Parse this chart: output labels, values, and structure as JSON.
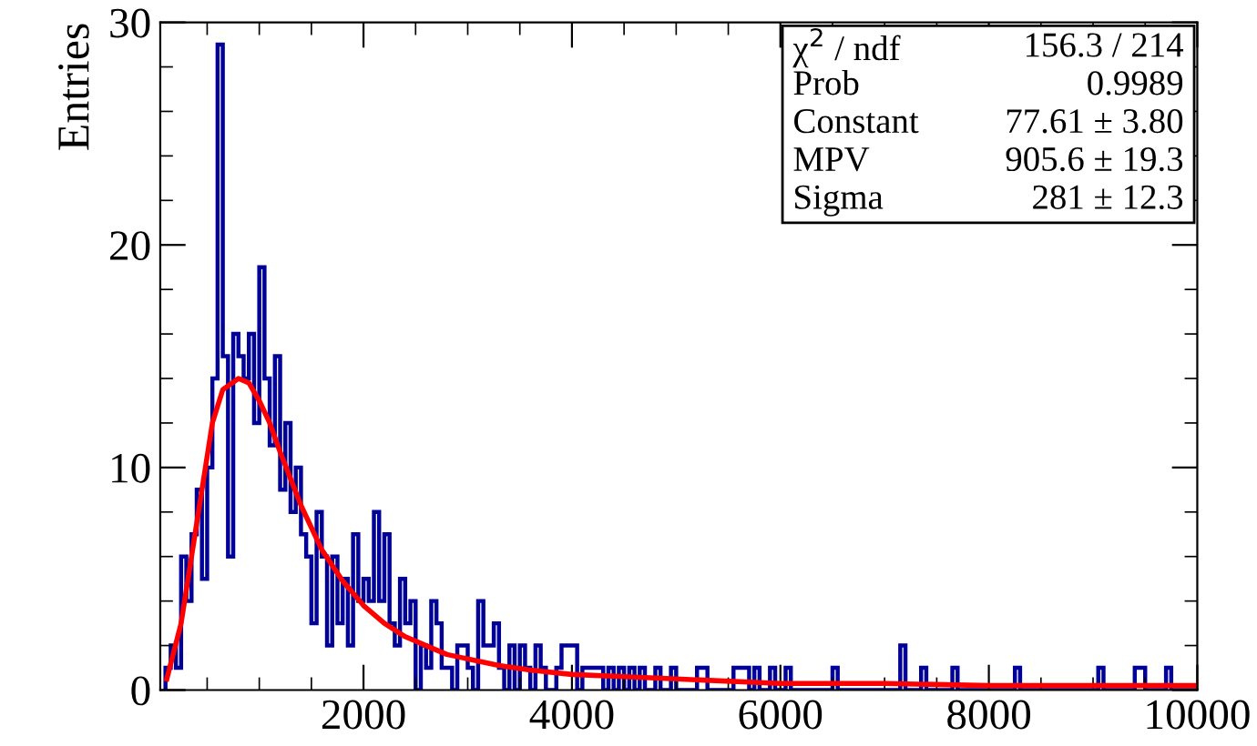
{
  "chart_data": {
    "type": "histogram",
    "ylabel": "Entries",
    "xlim": [
      50,
      10000
    ],
    "xticks": [
      2000,
      4000,
      6000,
      8000,
      10000
    ],
    "ylim": [
      0,
      30
    ],
    "yticks": [
      0,
      10,
      20,
      30
    ],
    "grid": false,
    "legend": false,
    "bins": [
      100,
      150,
      200,
      250,
      300,
      350,
      400,
      450,
      500,
      550,
      600,
      650,
      700,
      750,
      800,
      850,
      900,
      950,
      1000,
      1050,
      1100,
      1150,
      1200,
      1250,
      1300,
      1350,
      1400,
      1450,
      1500,
      1550,
      1600,
      1650,
      1700,
      1750,
      1800,
      1850,
      1900,
      1950,
      2000,
      2050,
      2100,
      2150,
      2200,
      2250,
      2300,
      2350,
      2400,
      2450,
      2500,
      2550,
      2600,
      2650,
      2700,
      2750,
      2800,
      2850,
      2900,
      2950,
      3000,
      3050,
      3100,
      3150,
      3200,
      3250,
      3300,
      3350,
      3400,
      3450,
      3500,
      3550,
      3600,
      3650,
      3700,
      3750,
      3800,
      3850,
      3900,
      3950,
      4000,
      4050,
      4100,
      4150,
      4200,
      4250,
      4300,
      4350,
      4400,
      4450,
      4500,
      4550,
      4600,
      4650,
      4700,
      4750,
      4800,
      4850,
      4900,
      4950,
      5000,
      5050,
      5100,
      5150,
      5200,
      5250,
      5300,
      5350,
      5400,
      5450,
      5500,
      5550,
      5600,
      5650,
      5700,
      5750,
      5800,
      5850,
      5900,
      5950,
      6000,
      6050,
      6100,
      6150,
      6200,
      6250,
      6300,
      6350,
      6400,
      6450,
      6500,
      6550,
      6600,
      6650,
      6700,
      6750,
      6800,
      6850,
      6900,
      6950,
      7000,
      7050,
      7100,
      7150,
      7200,
      7250,
      7300,
      7350,
      7400,
      7450,
      7500,
      7550,
      7600,
      7650,
      7700,
      7750,
      7800,
      7850,
      7900,
      7950,
      8000,
      8050,
      8100,
      8150,
      8200,
      8250,
      8300,
      8350,
      8400,
      8450,
      8500,
      8550,
      8600,
      8650,
      8700,
      8750,
      8800,
      8850,
      8900,
      8950,
      9000,
      9050,
      9100,
      9150,
      9200,
      9250,
      9300,
      9350,
      9400,
      9450,
      9500,
      9550,
      9600,
      9650,
      9700,
      9750,
      9800,
      9850,
      9900,
      9950,
      10000
    ],
    "series": [
      {
        "color": "#000099",
        "values": [
          1,
          2,
          1,
          6,
          4,
          7,
          9,
          5,
          10,
          14,
          29,
          15,
          6,
          16,
          15,
          14,
          16,
          12,
          19,
          14,
          11,
          15,
          9,
          12,
          8,
          10,
          7,
          6,
          3,
          8,
          6,
          2,
          6,
          3,
          5,
          2,
          7,
          4,
          5,
          4,
          8,
          4,
          7,
          3,
          2,
          5,
          3,
          4,
          0,
          2,
          1,
          4,
          3,
          1,
          1,
          0,
          2,
          2,
          1,
          0,
          4,
          2,
          2,
          3,
          1,
          0,
          2,
          0,
          2,
          1,
          0,
          2,
          1,
          0,
          0,
          1,
          2,
          2,
          2,
          0,
          1,
          1,
          1,
          1,
          0,
          1,
          0,
          1,
          0,
          1,
          0,
          1,
          0,
          0,
          1,
          0,
          0,
          1,
          0,
          0,
          0,
          0,
          1,
          1,
          0,
          0,
          0,
          0,
          0,
          1,
          1,
          1,
          0,
          1,
          0,
          0,
          1,
          0,
          0,
          1,
          0,
          0,
          0,
          0,
          0,
          0,
          0,
          0,
          1,
          0,
          0,
          0,
          0,
          0,
          0,
          0,
          0,
          0,
          0,
          0,
          0,
          2,
          0,
          0,
          0,
          1,
          0,
          0,
          0,
          0,
          0,
          1,
          0,
          0,
          0,
          0,
          0,
          0,
          0,
          0,
          0,
          0,
          0,
          1,
          0,
          0,
          0,
          0,
          0,
          0,
          0,
          0,
          0,
          0,
          0,
          0,
          0,
          0,
          0,
          1,
          0,
          0,
          0,
          0,
          0,
          0,
          1,
          1,
          0,
          0,
          0,
          0,
          1,
          0,
          0,
          0,
          0,
          0
        ]
      },
      {
        "type": "line",
        "color": "#ff0000",
        "x": [
          113,
          250,
          350,
          450,
          550,
          650,
          800,
          900,
          1000,
          1100,
          1200,
          1400,
          1600,
          1800,
          2000,
          2200,
          2400,
          2600,
          2800,
          3000,
          3300,
          3600,
          4000,
          4500,
          5000,
          6000,
          7000,
          8000,
          9000,
          10000
        ],
        "values": [
          0.5,
          3,
          6,
          9,
          12,
          13.5,
          14,
          13.8,
          13,
          12,
          10.7,
          8.3,
          6.3,
          4.9,
          3.8,
          3.0,
          2.4,
          2.0,
          1.6,
          1.4,
          1.1,
          0.9,
          0.7,
          0.6,
          0.5,
          0.3,
          0.3,
          0.2,
          0.2,
          0.2
        ]
      }
    ],
    "annotations": [
      "χ$^{2}$ / ndf",
      "156.3 / 214",
      "Prob",
      "0.9989",
      "Constant",
      "77.61 ± 3.80",
      "MPV",
      "905.6 ± 19.3",
      "Sigma",
      "281 ± 12.3"
    ]
  }
}
